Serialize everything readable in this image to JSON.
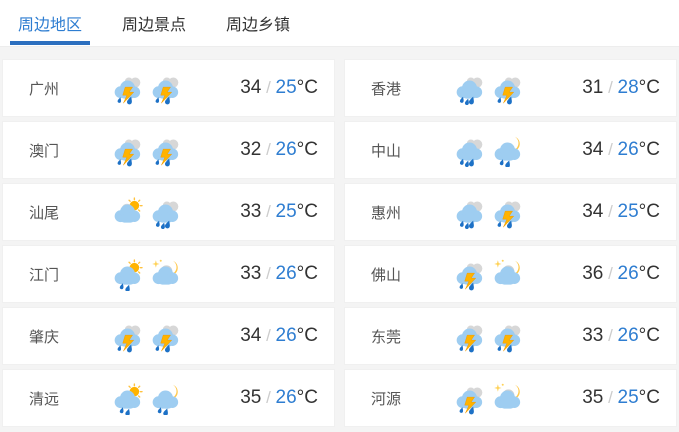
{
  "tabs": {
    "items": [
      {
        "label": "周边地区",
        "active": true
      },
      {
        "label": "周边景点",
        "active": false
      },
      {
        "label": "周边乡镇",
        "active": false
      }
    ]
  },
  "weather": {
    "unit": "°C",
    "separator": "/",
    "rows": [
      {
        "city": "广州",
        "icons": [
          "thunderstorm-icon",
          "thunderstorm-icon"
        ],
        "high": "34",
        "low": "25"
      },
      {
        "city": "香港",
        "icons": [
          "rain-icon",
          "thunderstorm-icon"
        ],
        "high": "31",
        "low": "28"
      },
      {
        "city": "澳门",
        "icons": [
          "thunderstorm-icon",
          "thunderstorm-icon"
        ],
        "high": "32",
        "low": "26"
      },
      {
        "city": "中山",
        "icons": [
          "rain-icon",
          "shower-night-icon"
        ],
        "high": "34",
        "low": "26"
      },
      {
        "city": "汕尾",
        "icons": [
          "partly-cloudy-day-icon",
          "rain-icon"
        ],
        "high": "33",
        "low": "25"
      },
      {
        "city": "惠州",
        "icons": [
          "rain-icon",
          "thunderstorm-icon"
        ],
        "high": "34",
        "low": "25"
      },
      {
        "city": "江门",
        "icons": [
          "shower-day-icon",
          "cloudy-night-icon"
        ],
        "high": "33",
        "low": "26"
      },
      {
        "city": "佛山",
        "icons": [
          "thunderstorm-icon",
          "cloudy-night-icon"
        ],
        "high": "36",
        "low": "26"
      },
      {
        "city": "肇庆",
        "icons": [
          "thunderstorm-icon",
          "thunderstorm-icon"
        ],
        "high": "34",
        "low": "26"
      },
      {
        "city": "东莞",
        "icons": [
          "thunderstorm-icon",
          "thunderstorm-icon"
        ],
        "high": "33",
        "low": "26"
      },
      {
        "city": "清远",
        "icons": [
          "shower-day-icon",
          "shower-night-icon"
        ],
        "high": "35",
        "low": "26"
      },
      {
        "city": "河源",
        "icons": [
          "thunderstorm-icon",
          "cloudy-night-icon"
        ],
        "high": "35",
        "low": "25"
      }
    ]
  },
  "colors": {
    "accent": "#2e7dd1",
    "tab_underline": "#2c6fbf",
    "temp_separator": "#cccccc",
    "text_dark": "#333333",
    "city_text": "#555555",
    "cloud_blue": "#9ecdf1",
    "cloud_gray": "#d7d7d7",
    "lightning_yellow": "#ffb300",
    "raindrop_blue": "#1d71c6",
    "sun_yellow": "#ffb300",
    "moon_yellow": "#ffc94e"
  }
}
